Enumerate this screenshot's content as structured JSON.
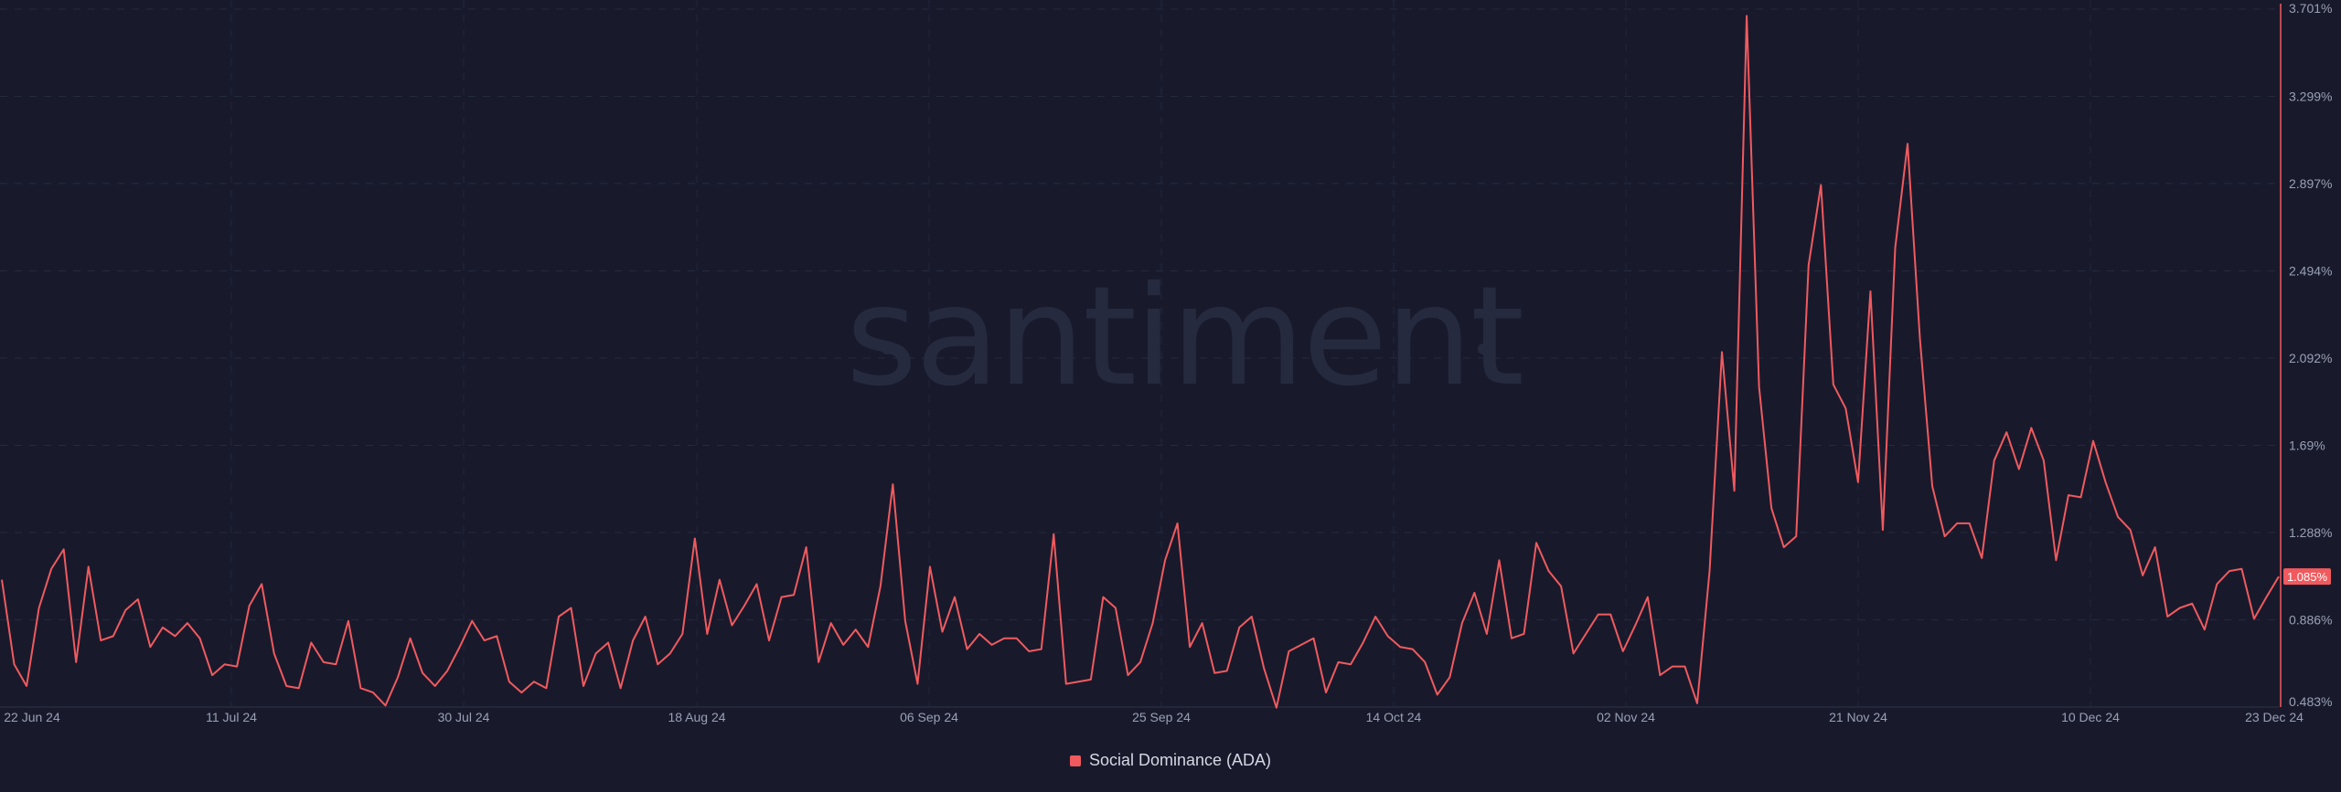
{
  "watermark": "santiment",
  "chart_data": {
    "type": "line",
    "xlabel": "",
    "ylabel": "",
    "x_start": "22 Jun 24",
    "x_end": "23 Dec 24",
    "x_tick_labels": [
      "22 Jun 24",
      "11 Jul 24",
      "30 Jul 24",
      "18 Aug 24",
      "06 Sep 24",
      "25 Sep 24",
      "14 Oct 24",
      "02 Nov 24",
      "21 Nov 24",
      "10 Dec 24",
      "23 Dec 24"
    ],
    "y_tick_labels": [
      "3.701%",
      "3.299%",
      "2.897%",
      "2.494%",
      "2.092%",
      "1.69%",
      "1.288%",
      "0.886%",
      "0.483%"
    ],
    "ylim": [
      0.483,
      3.701
    ],
    "grid": true,
    "legend_position": "bottom-center",
    "current_value_label": "1.085%",
    "series": [
      {
        "name": "Social Dominance (ADA)",
        "color": "#f05a5e",
        "values": [
          1.07,
          0.68,
          0.58,
          0.94,
          1.12,
          1.21,
          0.69,
          1.13,
          0.79,
          0.81,
          0.93,
          0.98,
          0.76,
          0.85,
          0.81,
          0.87,
          0.8,
          0.63,
          0.68,
          0.67,
          0.95,
          1.05,
          0.73,
          0.58,
          0.57,
          0.78,
          0.69,
          0.68,
          0.88,
          0.57,
          0.55,
          0.49,
          0.62,
          0.8,
          0.64,
          0.58,
          0.65,
          0.76,
          0.88,
          0.79,
          0.81,
          0.6,
          0.55,
          0.6,
          0.57,
          0.9,
          0.94,
          0.58,
          0.73,
          0.78,
          0.57,
          0.79,
          0.9,
          0.68,
          0.73,
          0.82,
          1.26,
          0.82,
          1.07,
          0.86,
          0.95,
          1.05,
          0.79,
          0.99,
          1.0,
          1.22,
          0.69,
          0.87,
          0.77,
          0.84,
          0.76,
          1.04,
          1.51,
          0.88,
          0.59,
          1.13,
          0.83,
          0.99,
          0.75,
          0.82,
          0.77,
          0.8,
          0.8,
          0.74,
          0.75,
          1.28,
          0.59,
          0.6,
          0.61,
          0.99,
          0.94,
          0.63,
          0.69,
          0.87,
          1.16,
          1.33,
          0.76,
          0.87,
          0.64,
          0.65,
          0.85,
          0.9,
          0.66,
          0.48,
          0.74,
          0.77,
          0.8,
          0.55,
          0.69,
          0.68,
          0.78,
          0.9,
          0.81,
          0.76,
          0.75,
          0.69,
          0.54,
          0.62,
          0.87,
          1.01,
          0.82,
          1.16,
          0.8,
          0.82,
          1.24,
          1.11,
          1.04,
          0.73,
          0.82,
          0.91,
          0.91,
          0.74,
          0.86,
          0.99,
          0.63,
          0.67,
          0.67,
          0.5,
          1.11,
          2.12,
          1.48,
          3.67,
          1.96,
          1.4,
          1.22,
          1.27,
          2.52,
          2.89,
          1.97,
          1.86,
          1.52,
          2.4,
          1.3,
          2.6,
          3.08,
          2.18,
          1.5,
          1.27,
          1.33,
          1.33,
          1.17,
          1.62,
          1.75,
          1.58,
          1.77,
          1.62,
          1.16,
          1.46,
          1.45,
          1.71,
          1.52,
          1.36,
          1.3,
          1.09,
          1.22,
          0.9,
          0.94,
          0.96,
          0.84,
          1.05,
          1.11,
          1.12,
          0.89,
          0.99,
          1.085
        ]
      }
    ]
  }
}
